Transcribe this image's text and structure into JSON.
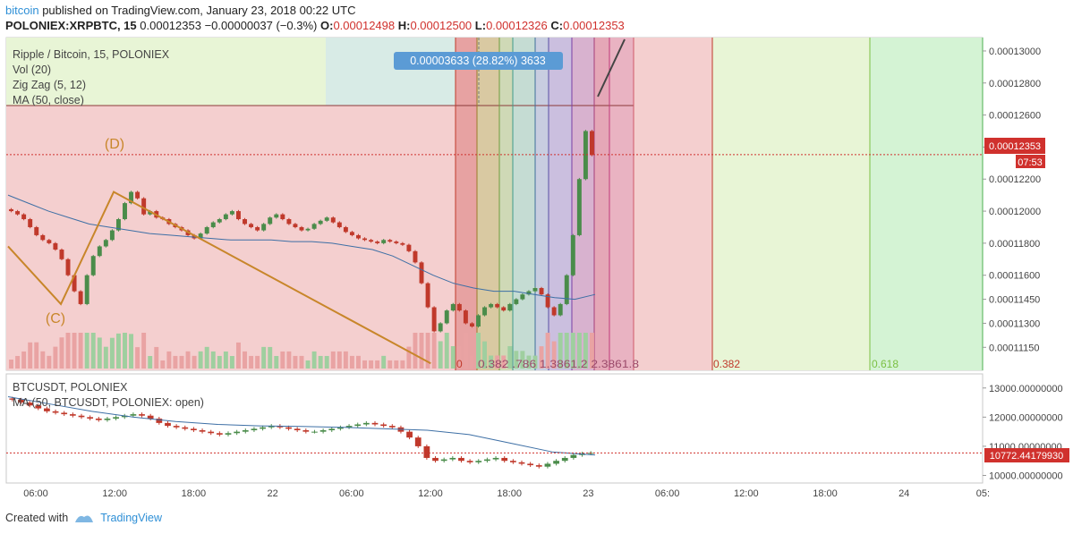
{
  "header": {
    "author": "bitcoin",
    "published_text": "published on TradingView.com, January 23, 2018 00:22 UTC",
    "symbol": "POLONIEX:XRPBTC, 15",
    "last": "0.00012353",
    "change": "−0.00000037 (−0.3%)",
    "o_label": "O:",
    "o": "0.00012498",
    "h_label": "H:",
    "h": "0.00012500",
    "l_label": "L:",
    "l": "0.00012326",
    "c_label": "C:",
    "c": "0.00012353"
  },
  "legend_main": [
    "Ripple / Bitcoin, 15, POLONIEX",
    "Vol (20)",
    "Zig Zag (5, 12)",
    "MA (50, close)"
  ],
  "legend_sub": [
    "BTCUSDT, POLONIEX",
    "MA (50, BTCUSDT, POLONIEX: open)"
  ],
  "measure_label": "0.00003633 (28.82%) 3633",
  "price_label": "0.00012353",
  "countdown_label": "07:53",
  "sub_price_label": "10772.44179930",
  "pattern_labels": {
    "c": "(C)",
    "d": "(D)"
  },
  "fib_labels": {
    "f382": "0.382",
    "f618": "0.618",
    "zero": "0",
    "crowded": "0.382 .786 1.3861.2 2.3861.8"
  },
  "footer": {
    "created_with": "Created with",
    "brand": "TradingView"
  },
  "colors": {
    "up": "#4a8c4a",
    "down": "#c0392b",
    "zigzag": "#c8862a",
    "ma": "#3d6fa5",
    "price_line": "#d0312d",
    "accent": "#2e8fd6"
  },
  "chart_data": [
    {
      "type": "candlestick",
      "title": "Ripple / Bitcoin, 15, POLONIEX",
      "x_ticks": [
        "06:00",
        "12:00",
        "18:00",
        "22",
        "06:00",
        "12:00",
        "18:00",
        "23",
        "06:00",
        "12:00",
        "18:00",
        "24",
        "05:"
      ],
      "y_ticks": [
        "0.00013000",
        "0.00012800",
        "0.00012600",
        "0.00012400",
        "0.00012200",
        "0.00012000",
        "0.00011800",
        "0.00011600",
        "0.00011450",
        "0.00011300",
        "0.00011150"
      ],
      "ylim": [
        0.0001104,
        0.0001305
      ],
      "series_close": [
        0.00012,
        0.0001198,
        0.0001195,
        0.000119,
        0.0001185,
        0.0001182,
        0.000118,
        0.0001176,
        0.000117,
        0.000116,
        0.000115,
        0.0001142,
        0.000116,
        0.0001172,
        0.0001178,
        0.0001182,
        0.0001188,
        0.0001195,
        0.0001205,
        0.0001212,
        0.0001208,
        0.0001198,
        0.00012,
        0.0001196,
        0.0001195,
        0.0001192,
        0.000119,
        0.0001188,
        0.0001185,
        0.0001183,
        0.0001186,
        0.000119,
        0.0001193,
        0.0001195,
        0.0001198,
        0.00012,
        0.0001195,
        0.0001192,
        0.000119,
        0.0001188,
        0.0001192,
        0.0001196,
        0.0001198,
        0.0001195,
        0.0001192,
        0.000119,
        0.0001188,
        0.0001189,
        0.0001192,
        0.0001194,
        0.0001196,
        0.0001193,
        0.000119,
        0.0001187,
        0.0001185,
        0.0001183,
        0.0001182,
        0.0001181,
        0.000118,
        0.0001182,
        0.0001181,
        0.000118,
        0.0001179,
        0.0001175,
        0.0001168,
        0.0001155,
        0.000114,
        0.0001125,
        0.000113,
        0.0001138,
        0.0001142,
        0.0001138,
        0.000113,
        0.0001128,
        0.0001135,
        0.000114,
        0.0001142,
        0.000114,
        0.0001138,
        0.0001142,
        0.0001145,
        0.0001148,
        0.000115,
        0.0001152,
        0.0001148,
        0.000114,
        0.0001135,
        0.0001142,
        0.000116,
        0.0001185,
        0.000122,
        0.000125,
        0.0001235
      ],
      "ma50": [
        0.000121,
        0.0001205,
        0.00012,
        0.0001196,
        0.0001192,
        0.000119,
        0.0001188,
        0.0001186,
        0.0001185,
        0.0001184,
        0.0001183,
        0.0001182,
        0.0001182,
        0.0001182,
        0.0001181,
        0.0001181,
        0.000118,
        0.0001178,
        0.0001176,
        0.0001172,
        0.0001166,
        0.000116,
        0.0001155,
        0.0001152,
        0.000115,
        0.000115,
        0.0001148,
        0.0001146,
        0.0001145,
        0.0001148
      ],
      "zigzag": [
        {
          "label": "",
          "t": 0,
          "price": 0.0001178
        },
        {
          "label": "(C)",
          "t": 0.09,
          "price": 0.0001142
        },
        {
          "label": "(D)",
          "t": 0.18,
          "price": 0.0001212
        },
        {
          "label": "",
          "t": 0.72,
          "price": 0.0001105
        }
      ],
      "last_price": 0.00012353
    },
    {
      "type": "candlestick",
      "title": "BTCUSDT, POLONIEX",
      "y_ticks": [
        "13000.00000000",
        "12000.00000000",
        "11000.00000000",
        "10000.00000000"
      ],
      "ylim": [
        9800,
        13300
      ],
      "series_close": [
        12600,
        12500,
        12400,
        12300,
        12200,
        12150,
        12100,
        12050,
        12000,
        11950,
        11900,
        11950,
        12000,
        12050,
        12100,
        12050,
        11950,
        11800,
        11700,
        11650,
        11600,
        11550,
        11500,
        11450,
        11400,
        11450,
        11500,
        11550,
        11600,
        11650,
        11700,
        11650,
        11600,
        11550,
        11500,
        11500,
        11550,
        11600,
        11650,
        11700,
        11750,
        11800,
        11750,
        11700,
        11650,
        11500,
        11300,
        11000,
        10600,
        10500,
        10550,
        10600,
        10500,
        10450,
        10500,
        10550,
        10600,
        10500,
        10450,
        10400,
        10350,
        10300,
        10400,
        10500,
        10600,
        10700,
        10750,
        10772
      ],
      "ma50": [
        12700,
        12450,
        12200,
        12000,
        11850,
        11750,
        11700,
        11680,
        11650,
        11600,
        11550,
        11400,
        11100,
        10800,
        10700
      ],
      "last_price": 10772.4417993
    }
  ]
}
